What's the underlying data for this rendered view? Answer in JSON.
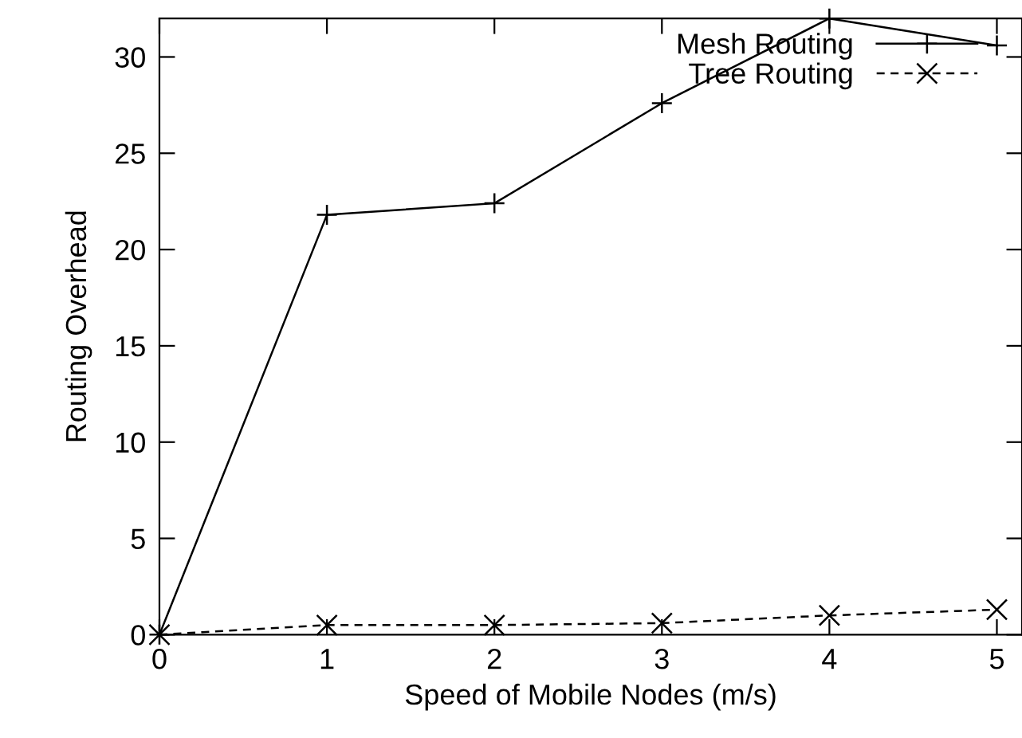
{
  "chart_data": {
    "type": "line",
    "xlabel": "Speed of Mobile Nodes (m/s)",
    "ylabel": "Routing Overhead",
    "x": [
      0,
      1,
      2,
      3,
      4,
      5
    ],
    "series": [
      {
        "name": "Mesh Routing",
        "color": "#000000",
        "values": [
          0,
          21.8,
          22.4,
          27.6,
          32,
          30.6
        ],
        "marker": "cross",
        "line_style": "solid"
      },
      {
        "name": "Tree Routing",
        "color": "#000000",
        "values": [
          0,
          0.5,
          0.5,
          0.6,
          1.0,
          1.3
        ],
        "marker": "x",
        "line_style": "dashed"
      }
    ],
    "xlim": [
      0,
      5.15
    ],
    "xticks": [
      0,
      1,
      2,
      3,
      4,
      5
    ],
    "ylim": [
      0,
      32
    ],
    "yticks": [
      0,
      5,
      10,
      15,
      20,
      25,
      30
    ],
    "grid": false,
    "legend": "top right"
  }
}
